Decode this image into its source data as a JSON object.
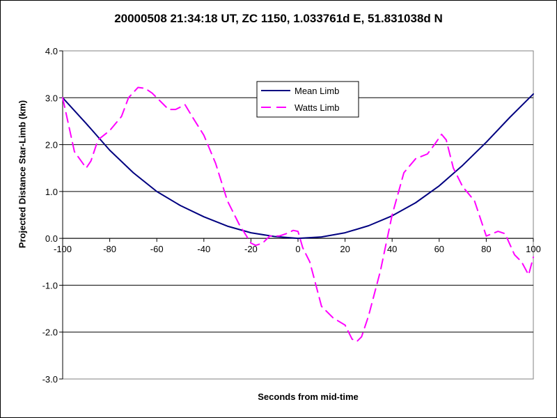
{
  "chart_data": {
    "type": "line",
    "title": "20000508 21:34:18 UT, ZC 1150, 1.033761d E, 51.831038d N",
    "xlabel": "Seconds from mid-time",
    "ylabel": "Projected Distance Star-Limb (km)",
    "xlim": [
      -100,
      100
    ],
    "ylim": [
      -3.0,
      4.0
    ],
    "x_ticks": [
      -100,
      -80,
      -60,
      -40,
      -20,
      0,
      20,
      40,
      60,
      80,
      100
    ],
    "y_ticks": [
      4.0,
      3.0,
      2.0,
      1.0,
      0.0,
      -1.0,
      -2.0,
      -3.0
    ],
    "x_tick_labels": [
      "-100",
      "-80",
      "-60",
      "-40",
      "-20",
      "0",
      "20",
      "40",
      "60",
      "80",
      "100"
    ],
    "y_tick_labels": [
      "4.0",
      "3.0",
      "2.0",
      "1.0",
      "0.0",
      "-1.0",
      "-2.0",
      "-3.0"
    ],
    "grid": "horizontal",
    "legend_position": "top-center",
    "series": [
      {
        "name": "Mean Limb",
        "color": "#000080",
        "style": "solid",
        "x": [
          -100,
          -90,
          -80,
          -70,
          -60,
          -50,
          -40,
          -30,
          -20,
          -10,
          0,
          10,
          20,
          30,
          40,
          50,
          60,
          70,
          80,
          90,
          100
        ],
        "y": [
          3.0,
          2.45,
          1.88,
          1.4,
          1.0,
          0.7,
          0.46,
          0.26,
          0.12,
          0.04,
          0.0,
          0.03,
          0.12,
          0.27,
          0.48,
          0.76,
          1.12,
          1.56,
          2.05,
          2.58,
          3.08
        ]
      },
      {
        "name": "Watts Limb",
        "color": "#ff00ff",
        "style": "dashed",
        "x": [
          -100,
          -95,
          -90,
          -88,
          -85,
          -80,
          -75,
          -72,
          -68,
          -65,
          -62,
          -58,
          -55,
          -52,
          -48,
          -45,
          -40,
          -35,
          -30,
          -25,
          -20,
          -18,
          -15,
          -12,
          -8,
          -5,
          -2,
          0,
          2,
          5,
          10,
          15,
          20,
          23,
          25,
          27,
          30,
          35,
          40,
          45,
          50,
          55,
          58,
          61,
          63,
          66,
          70,
          75,
          80,
          85,
          88,
          92,
          95,
          98,
          100
        ],
        "y": [
          3.0,
          1.85,
          1.5,
          1.65,
          2.1,
          2.3,
          2.6,
          3.0,
          3.22,
          3.2,
          3.1,
          2.9,
          2.75,
          2.75,
          2.85,
          2.6,
          2.2,
          1.6,
          0.8,
          0.3,
          -0.1,
          -0.15,
          -0.1,
          0.05,
          0.05,
          0.1,
          0.17,
          0.15,
          -0.2,
          -0.5,
          -1.45,
          -1.7,
          -1.85,
          -2.15,
          -2.2,
          -2.1,
          -1.65,
          -0.7,
          0.5,
          1.4,
          1.7,
          1.8,
          2.0,
          2.22,
          2.1,
          1.5,
          1.1,
          0.8,
          0.05,
          0.15,
          0.1,
          -0.35,
          -0.5,
          -0.78,
          -0.4
        ]
      }
    ]
  }
}
